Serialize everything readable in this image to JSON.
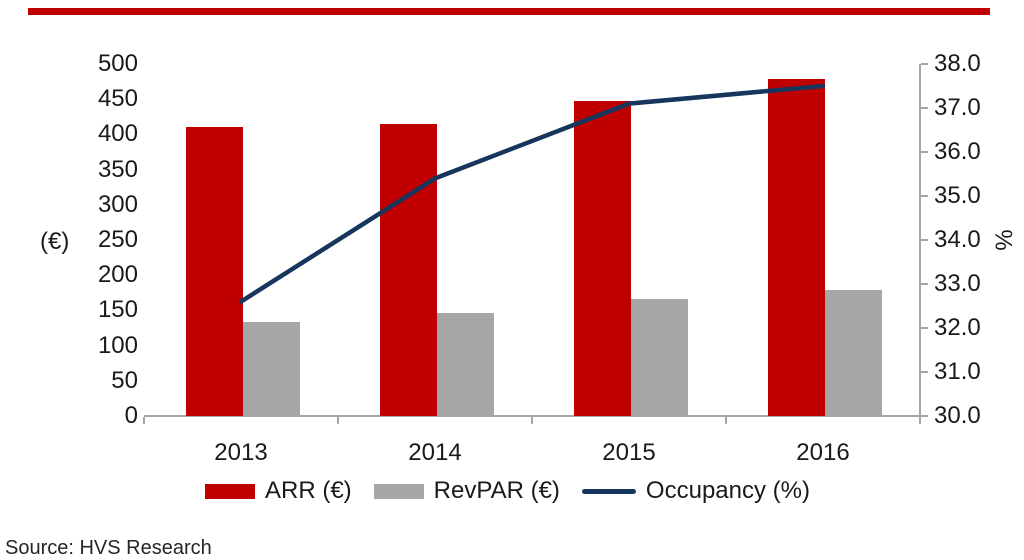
{
  "page": {
    "source": "Source: HVS Research",
    "top_rule_color": "#C00000"
  },
  "chart": {
    "left_axis_unit": "(€)",
    "right_axis_unit": "%",
    "axis_color": "#a6a6a6",
    "text_color": "#1a1a1a"
  },
  "chart_data": {
    "type": "combo",
    "categories": [
      "2013",
      "2014",
      "2015",
      "2016"
    ],
    "series": [
      {
        "name": "ARR (€)",
        "type": "bar",
        "axis": "left",
        "color": "#C00000",
        "values": [
          410,
          415,
          448,
          478
        ]
      },
      {
        "name": "RevPAR (€)",
        "type": "bar",
        "axis": "left",
        "color": "#A6A6A6",
        "values": [
          133,
          147,
          166,
          179
        ]
      },
      {
        "name": "Occupancy (%)",
        "type": "line",
        "axis": "right",
        "color": "#17365D",
        "values": [
          32.6,
          35.4,
          37.1,
          37.5
        ]
      }
    ],
    "left_axis": {
      "label": "(€)",
      "ylim": [
        0,
        500
      ],
      "tick_step": 50,
      "ticks": [
        "500",
        "450",
        "400",
        "350",
        "300",
        "250",
        "200",
        "150",
        "100",
        "50",
        "0"
      ]
    },
    "right_axis": {
      "label": "%",
      "ylim": [
        30.0,
        38.0
      ],
      "tick_step": 1.0,
      "ticks": [
        "38.0",
        "37.0",
        "36.0",
        "35.0",
        "34.0",
        "33.0",
        "32.0",
        "31.0",
        "30.0"
      ]
    },
    "gridlines": false,
    "legend_position": "bottom",
    "title": ""
  }
}
